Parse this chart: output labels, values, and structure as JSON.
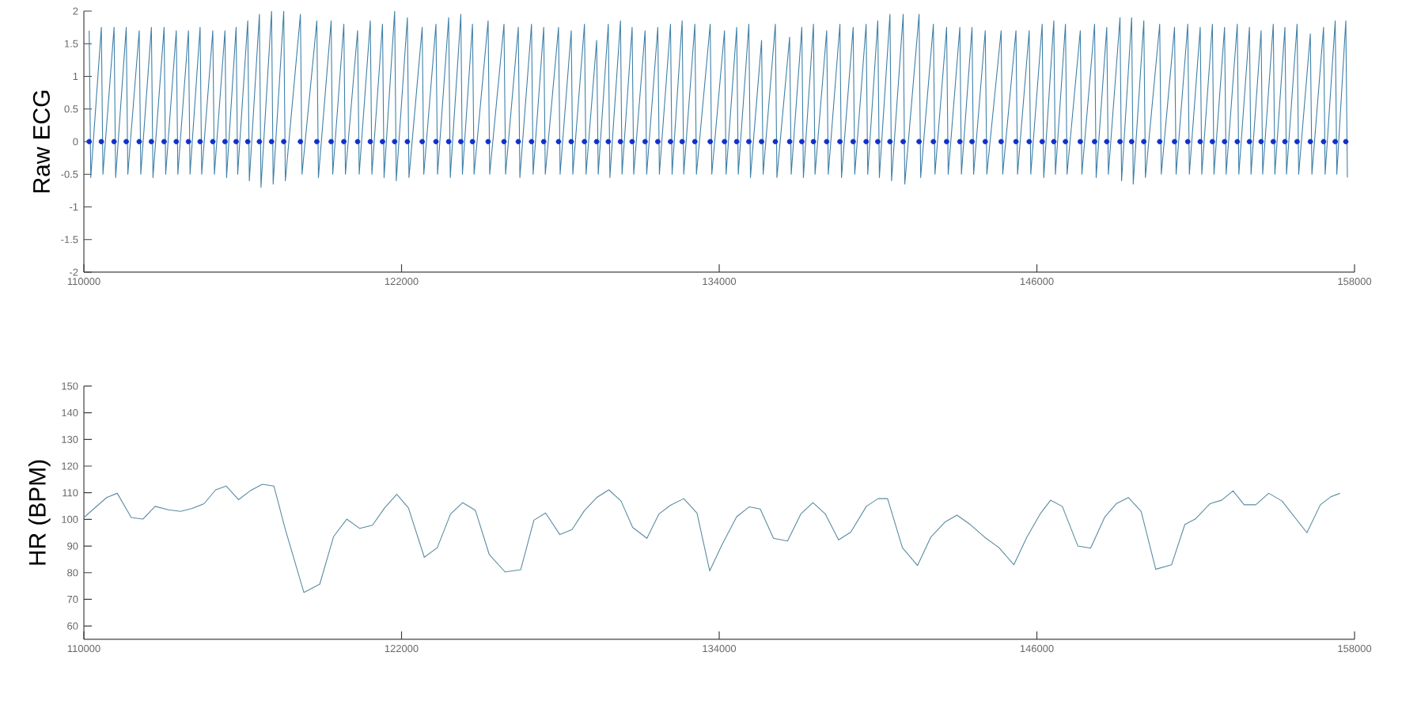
{
  "chart_data": [
    {
      "type": "line",
      "ylabel": "Raw ECG",
      "xlim": [
        110000,
        158000
      ],
      "xticks": [
        110000,
        122000,
        134000,
        146000,
        158000
      ],
      "ylim": [
        -2,
        2
      ],
      "yticks": [
        -2,
        -1.5,
        -1,
        -0.5,
        0,
        0.5,
        1,
        1.5,
        2
      ],
      "series": [
        {
          "type": "line",
          "color": "#3f80a8",
          "x": [
            110200,
            110260,
            110660,
            110720,
            111140,
            111200,
            111600,
            111660,
            112090,
            112150,
            112550,
            112610,
            113030,
            113090,
            113490,
            113550,
            113950,
            114010,
            114390,
            114450,
            114870,
            114930,
            115330,
            115390,
            115750,
            115810,
            116190,
            116250,
            116630,
            116690,
            117090,
            117150,
            117550,
            117610,
            118180,
            118240,
            118800,
            118860,
            119340,
            119400,
            119820,
            119880,
            120340,
            120400,
            120820,
            120880,
            121280,
            121340,
            121740,
            121800,
            122220,
            122280,
            122780,
            122840,
            123300,
            123360,
            123780,
            123840,
            124240,
            124300,
            124680,
            124740,
            125270,
            125330,
            125870,
            125930,
            126410,
            126470,
            126910,
            126970,
            127370,
            127430,
            127930,
            127990,
            128410,
            128470,
            128910,
            128970,
            129370,
            129430,
            129810,
            129870,
            130270,
            130330,
            130710,
            130770,
            131200,
            131260,
            131680,
            131740,
            132160,
            132220,
            132600,
            132660,
            133080,
            133140,
            133660,
            133720,
            134200,
            134260,
            134660,
            134720,
            135120,
            135180,
            135600,
            135660,
            136120,
            136180,
            136660,
            136720,
            137120,
            137180,
            137560,
            137620,
            138060,
            138120,
            138560,
            138620,
            139060,
            139120,
            139550,
            139610,
            139990,
            140050,
            140450,
            140510,
            140950,
            141010,
            141550,
            141610,
            142090,
            142150,
            142590,
            142650,
            143090,
            143150,
            143550,
            143610,
            144050,
            144110,
            144650,
            144710,
            145210,
            145270,
            145710,
            145770,
            146200,
            146260,
            146640,
            146700,
            147080,
            147140,
            147640,
            147700,
            148180,
            148240,
            148640,
            148700,
            149140,
            149200,
            149580,
            149640,
            150040,
            150100,
            150640,
            150700,
            151200,
            151260,
            151700,
            151760,
            152170,
            152230,
            152630,
            152690,
            153090,
            153150,
            153570,
            153630,
            154030,
            154090,
            154470,
            154530,
            154930,
            154990,
            155370,
            155430,
            155830,
            155890,
            156330,
            156390,
            156830,
            156890,
            157270,
            157330,
            157670,
            157730
          ],
          "values": [
            1.7,
            -0.55,
            1.75,
            -0.5,
            1.75,
            -0.55,
            1.75,
            -0.5,
            1.7,
            -0.5,
            1.75,
            -0.55,
            1.75,
            -0.5,
            1.7,
            -0.5,
            1.7,
            -0.5,
            1.75,
            -0.5,
            1.7,
            -0.5,
            1.7,
            -0.55,
            1.75,
            -0.5,
            1.85,
            -0.6,
            1.95,
            -0.7,
            2,
            -0.65,
            2,
            -0.6,
            1.95,
            -0.5,
            1.85,
            -0.55,
            1.85,
            -0.5,
            1.8,
            -0.5,
            1.7,
            -0.5,
            1.85,
            -0.5,
            1.8,
            -0.55,
            2,
            -0.6,
            1.9,
            -0.55,
            1.75,
            -0.5,
            1.8,
            -0.5,
            1.9,
            -0.55,
            1.95,
            -0.5,
            1.8,
            -0.5,
            1.85,
            -0.5,
            1.8,
            -0.5,
            1.75,
            -0.55,
            1.8,
            -0.5,
            1.75,
            -0.5,
            1.75,
            -0.5,
            1.7,
            -0.5,
            1.8,
            -0.5,
            1.55,
            -0.5,
            1.8,
            -0.55,
            1.85,
            -0.5,
            1.75,
            -0.5,
            1.7,
            -0.5,
            1.75,
            -0.5,
            1.8,
            -0.5,
            1.85,
            -0.5,
            1.8,
            -0.5,
            1.8,
            -0.5,
            1.7,
            -0.5,
            1.75,
            -0.5,
            1.8,
            -0.55,
            1.55,
            -0.5,
            1.8,
            -0.55,
            1.6,
            -0.5,
            1.75,
            -0.55,
            1.8,
            -0.5,
            1.7,
            -0.5,
            1.8,
            -0.55,
            1.75,
            -0.5,
            1.8,
            -0.5,
            1.85,
            -0.55,
            1.95,
            -0.6,
            1.95,
            -0.65,
            1.95,
            -0.55,
            1.8,
            -0.5,
            1.75,
            -0.5,
            1.75,
            -0.5,
            1.75,
            -0.5,
            1.7,
            -0.5,
            1.7,
            -0.5,
            1.7,
            -0.5,
            1.7,
            -0.5,
            1.8,
            -0.55,
            1.85,
            -0.5,
            1.8,
            -0.5,
            1.7,
            -0.5,
            1.8,
            -0.55,
            1.75,
            -0.5,
            1.9,
            -0.6,
            1.9,
            -0.65,
            1.85,
            -0.55,
            1.8,
            -0.5,
            1.75,
            -0.5,
            1.8,
            -0.5,
            1.75,
            -0.5,
            1.8,
            -0.5,
            1.75,
            -0.5,
            1.8,
            -0.5,
            1.75,
            -0.5,
            1.7,
            -0.5,
            1.8,
            -0.5,
            1.75,
            -0.5,
            1.8,
            -0.5,
            1.65,
            -0.5,
            1.75,
            -0.5,
            1.85,
            -0.5,
            1.85,
            -0.55
          ]
        },
        {
          "type": "scatter",
          "marker": "circle",
          "color": "#1230c8",
          "x": [
            110200,
            110660,
            111140,
            111600,
            112090,
            112550,
            113030,
            113490,
            113950,
            114390,
            114870,
            115330,
            115750,
            116190,
            116630,
            117090,
            117550,
            118180,
            118800,
            119340,
            119820,
            120340,
            120820,
            121280,
            121740,
            122220,
            122780,
            123300,
            123780,
            124240,
            124680,
            125270,
            125870,
            126410,
            126910,
            127370,
            127930,
            128410,
            128910,
            129370,
            129810,
            130270,
            130710,
            131200,
            131680,
            132160,
            132600,
            133080,
            133660,
            134200,
            134660,
            135120,
            135600,
            136120,
            136660,
            137120,
            137560,
            138060,
            138560,
            139060,
            139550,
            139990,
            140450,
            140950,
            141550,
            142090,
            142590,
            143090,
            143550,
            144050,
            144650,
            145210,
            145710,
            146200,
            146640,
            147080,
            147640,
            148180,
            148640,
            149140,
            149580,
            150040,
            150640,
            151200,
            151700,
            152170,
            152630,
            153090,
            153570,
            154030,
            154470,
            154930,
            155370,
            155830,
            156330,
            156830,
            157270,
            157670
          ],
          "values": [
            0,
            0,
            0,
            0,
            0,
            0,
            0,
            0,
            0,
            0,
            0,
            0,
            0,
            0,
            0,
            0,
            0,
            0,
            0,
            0,
            0,
            0,
            0,
            0,
            0,
            0,
            0,
            0,
            0,
            0,
            0,
            0,
            0,
            0,
            0,
            0,
            0,
            0,
            0,
            0,
            0,
            0,
            0,
            0,
            0,
            0,
            0,
            0,
            0,
            0,
            0,
            0,
            0,
            0,
            0,
            0,
            0,
            0,
            0,
            0,
            0,
            0,
            0,
            0,
            0,
            0,
            0,
            0,
            0,
            0,
            0,
            0,
            0,
            0,
            0,
            0,
            0,
            0,
            0,
            0,
            0,
            0,
            0,
            0,
            0,
            0,
            0,
            0,
            0,
            0,
            0,
            0,
            0,
            0,
            0,
            0,
            0,
            0
          ]
        }
      ]
    },
    {
      "type": "line",
      "ylabel": "HR (BPM)",
      "xlim": [
        110000,
        158000
      ],
      "xticks": [
        110000,
        122000,
        134000,
        146000,
        158000
      ],
      "ylim": [
        55,
        150
      ],
      "yticks": [
        60,
        70,
        80,
        90,
        100,
        110,
        120,
        130,
        140,
        150
      ],
      "series": [
        {
          "color": "#5a8ca0",
          "x": [
            110000,
            110860,
            111260,
            111790,
            112230,
            112690,
            113190,
            113650,
            114090,
            114540,
            114980,
            115380,
            115840,
            116280,
            116740,
            117180,
            117610,
            118310,
            118910,
            119430,
            119930,
            120420,
            120900,
            121360,
            121820,
            122260,
            122860,
            123350,
            123850,
            124310,
            124790,
            125310,
            125910,
            126500,
            127000,
            127440,
            127980,
            128440,
            128900,
            129370,
            129830,
            130290,
            130730,
            131270,
            131720,
            132160,
            132660,
            133160,
            133640,
            134100,
            134660,
            135130,
            135550,
            136050,
            136580,
            137080,
            137540,
            138010,
            138510,
            138970,
            139560,
            140000,
            140360,
            140920,
            141490,
            141990,
            142540,
            142980,
            143480,
            144030,
            144570,
            145130,
            145620,
            146120,
            146520,
            146960,
            147550,
            148030,
            148570,
            149000,
            149460,
            149940,
            150490,
            151090,
            151590,
            151980,
            152540,
            152980,
            153410,
            153830,
            154270,
            154760,
            155260,
            156200,
            156710,
            157090,
            157450
          ],
          "values": [
            100.7,
            108.2,
            109.8,
            100.7,
            100.1,
            104.9,
            103.6,
            103.0,
            104.1,
            105.9,
            111.1,
            112.5,
            107.4,
            110.7,
            113.2,
            112.5,
            96.2,
            72.6,
            75.7,
            93.5,
            100.1,
            96.6,
            97.8,
            104.3,
            109.4,
            104.3,
            85.8,
            89.4,
            102.0,
            106.3,
            103.4,
            86.9,
            80.3,
            81.1,
            99.7,
            102.4,
            94.3,
            96.2,
            103.2,
            108.2,
            111.1,
            106.9,
            97.0,
            92.9,
            102.0,
            105.3,
            107.8,
            102.4,
            80.7,
            90.4,
            101.0,
            104.7,
            103.9,
            92.9,
            91.9,
            102.0,
            106.3,
            102.0,
            92.3,
            95.2,
            104.9,
            107.8,
            107.8,
            89.4,
            82.7,
            93.3,
            99.1,
            101.6,
            98.1,
            93.3,
            89.4,
            83.0,
            93.3,
            102.0,
            107.2,
            104.9,
            90.0,
            89.2,
            101.0,
            105.9,
            108.2,
            103.0,
            81.3,
            83.0,
            98.1,
            100.1,
            105.9,
            107.2,
            110.7,
            105.5,
            105.5,
            109.8,
            106.9,
            95.0,
            105.5,
            108.4,
            109.8
          ]
        }
      ]
    }
  ]
}
